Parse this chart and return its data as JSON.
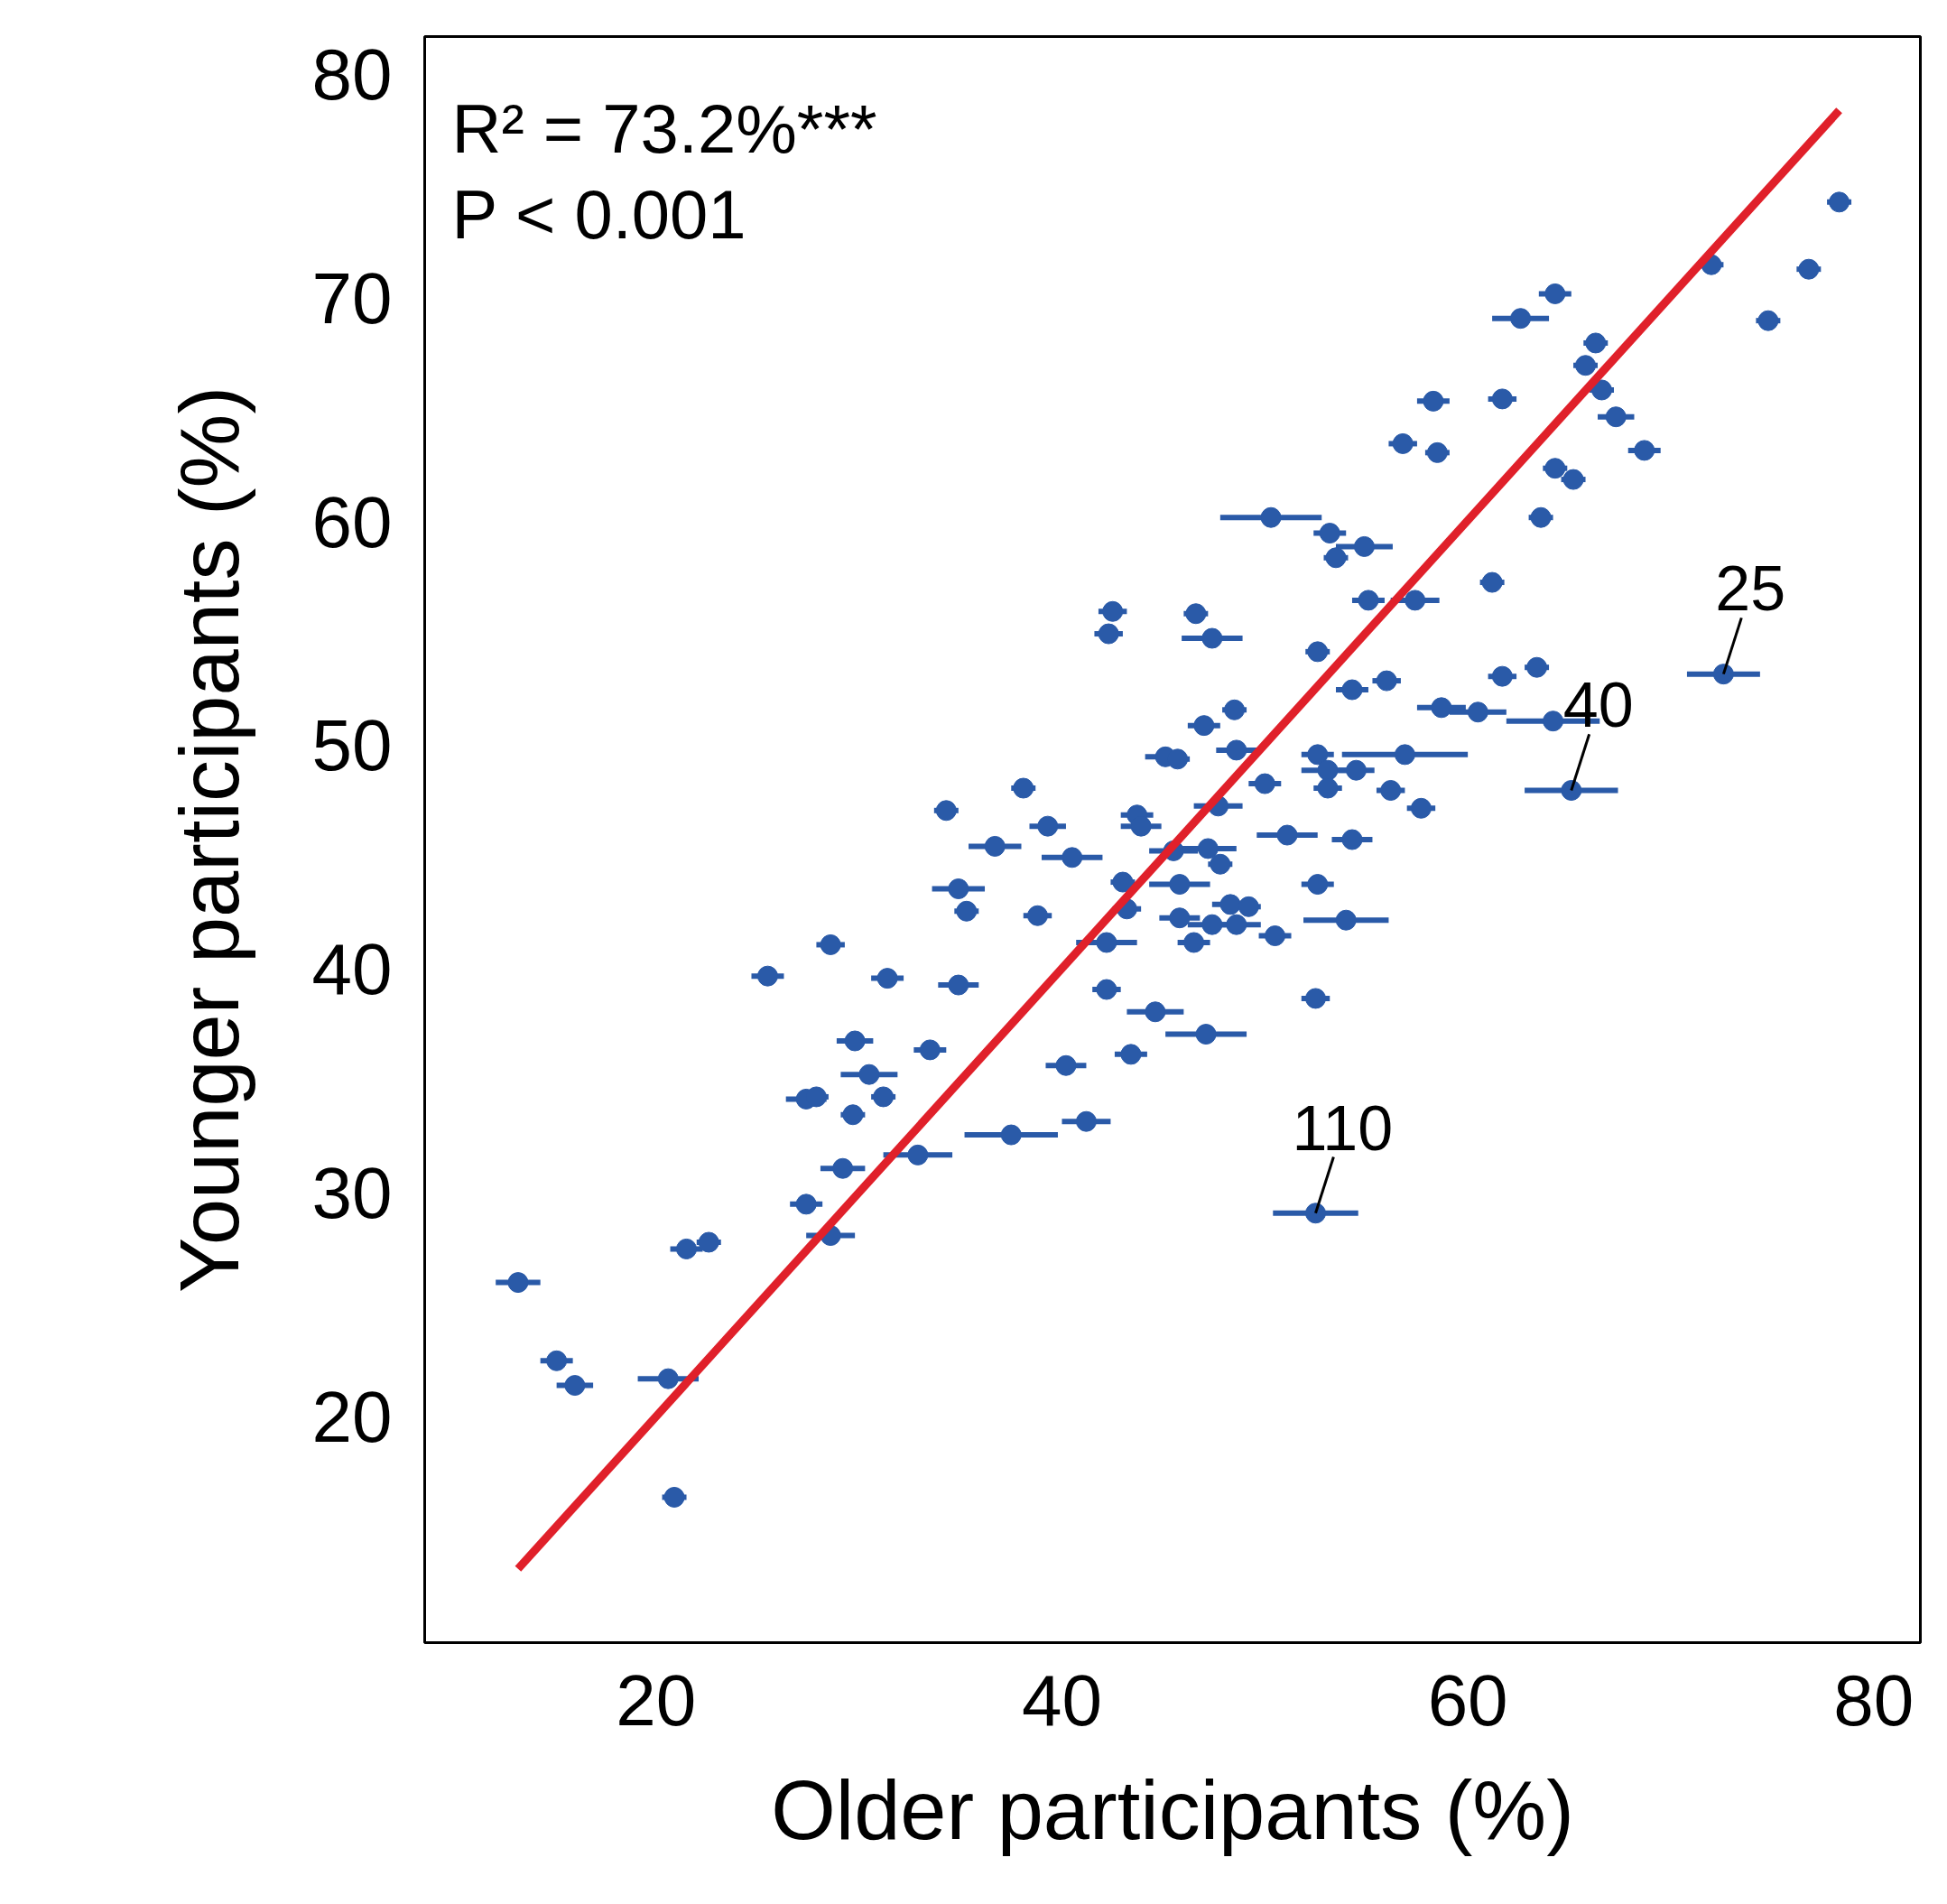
{
  "chart_data": {
    "type": "scatter",
    "xlabel": "Older participants (%)",
    "ylabel": "Younger participants (%)",
    "xlim": [
      8.6,
      82.3
    ],
    "ylim": [
      9.9,
      81.7
    ],
    "xticks": [
      20,
      40,
      60,
      80
    ],
    "yticks": [
      20,
      30,
      40,
      50,
      60,
      70,
      80
    ],
    "grid": false,
    "marker": "circle",
    "annotations": [
      "R² = 73.2%***",
      "P < 0.001",
      {
        "text": "25",
        "x": 72.6,
        "y": 53.2
      },
      {
        "text": "40",
        "x": 65.1,
        "y": 48.0
      },
      {
        "text": "110",
        "x": 52.5,
        "y": 29.1
      }
    ],
    "series": [
      {
        "color": "#2a5aa8",
        "x": [
          13.2,
          15.1,
          16.0,
          20.6,
          20.9,
          21.5,
          22.6,
          25.5,
          27.4,
          27.9,
          27.4,
          28.6,
          28.6,
          29.7,
          29.8,
          30.5,
          29.2,
          31.2,
          31.4,
          32.9,
          33.5,
          34.9,
          34.3,
          35.3,
          34.9,
          36.7,
          37.5,
          38.1,
          38.8,
          39.3,
          40.2,
          40.5,
          41.2,
          42.2,
          42.2,
          42.3,
          42.5,
          43.0,
          43.2,
          43.4,
          43.7,
          43.9,
          44.6,
          45.1,
          45.5,
          45.8,
          45.8,
          45.7,
          46.6,
          47.4,
          47.0,
          46.5,
          47.1,
          47.4,
          47.7,
          47.2,
          47.8,
          48.5,
          48.6,
          48.3,
          48.6,
          49.2,
          50.3,
          50.0,
          50.5,
          51.1,
          52.5,
          52.6,
          52.6,
          52.6,
          52.5,
          53.1,
          53.2,
          53.5,
          53.1,
          54.0,
          54.3,
          54.3,
          54.9,
          54.5,
          55.1,
          56.0,
          56.2,
          56.9,
          57.4,
          56.8,
          57.7,
          58.5,
          58.3,
          58.7,
          60.5,
          61.2,
          61.7,
          61.7,
          62.6,
          63.4,
          63.6,
          64.2,
          64.3,
          64.3,
          65.2,
          65.1,
          65.8,
          66.3,
          66.6,
          67.3,
          68.7,
          72.0,
          72.6,
          74.8,
          76.8,
          78.3
        ],
        "values": [
          26.0,
          22.5,
          21.4,
          21.7,
          16.4,
          27.5,
          27.8,
          39.7,
          34.2,
          34.3,
          29.5,
          41.1,
          28.1,
          33.5,
          36.8,
          35.3,
          31.1,
          34.3,
          39.6,
          31.7,
          36.4,
          43.6,
          47.1,
          42.6,
          39.3,
          45.5,
          32.6,
          48.1,
          42.4,
          46.4,
          35.7,
          45.0,
          33.2,
          41.2,
          39.1,
          55.0,
          56.0,
          43.9,
          42.7,
          36.2,
          46.9,
          46.4,
          38.1,
          49.5,
          45.3,
          43.8,
          42.3,
          49.4,
          55.9,
          54.8,
          50.9,
          41.2,
          37.1,
          42.0,
          47.3,
          45.4,
          44.7,
          51.6,
          49.8,
          42.9,
          42.0,
          42.8,
          60.2,
          48.3,
          41.5,
          46.0,
          38.7,
          54.2,
          49.6,
          43.8,
          29.1,
          48.9,
          59.5,
          58.4,
          48.1,
          42.2,
          52.5,
          45.8,
          58.9,
          48.9,
          56.5,
          52.9,
          48.0,
          49.6,
          56.5,
          63.5,
          47.2,
          63.1,
          65.4,
          51.7,
          51.5,
          57.3,
          65.5,
          53.1,
          69.1,
          53.5,
          60.2,
          51.1,
          70.2,
          62.4,
          61.9,
          48.0,
          67.0,
          68.0,
          65.9,
          64.7,
          63.2,
          71.5,
          53.2,
          69.0,
          71.3,
          74.3
        ],
        "xerrors": [
          1.1,
          0.8,
          0.9,
          1.5,
          0.6,
          0.8,
          0.6,
          0.8,
          1.0,
          0.6,
          0.8,
          0.7,
          1.2,
          0.6,
          0.9,
          1.4,
          1.1,
          0.6,
          0.8,
          1.7,
          0.8,
          1.3,
          0.6,
          0.6,
          1.0,
          1.3,
          2.3,
          0.6,
          0.7,
          0.9,
          1.0,
          1.5,
          1.2,
          1.5,
          0.7,
          0.7,
          0.7,
          0.6,
          0.7,
          0.8,
          0.8,
          1.0,
          1.4,
          1.0,
          1.2,
          1.5,
          1.0,
          0.6,
          0.6,
          1.5,
          0.8,
          0.8,
          2.0,
          1.2,
          1.2,
          1.4,
          0.6,
          0.6,
          1.0,
          0.9,
          1.2,
          0.6,
          2.5,
          0.8,
          0.8,
          1.5,
          0.7,
          0.6,
          0.8,
          0.8,
          2.1,
          1.3,
          0.8,
          0.6,
          0.7,
          2.1,
          0.8,
          1.0,
          1.4,
          0.9,
          0.8,
          0.7,
          0.7,
          3.1,
          1.2,
          0.7,
          0.7,
          0.6,
          0.8,
          1.2,
          1.4,
          0.6,
          0.7,
          0.7,
          1.4,
          0.6,
          0.6,
          2.3,
          0.8,
          0.6,
          0.6,
          2.3,
          0.6,
          0.6,
          0.6,
          0.9,
          0.8,
          0.6,
          1.8,
          0.6,
          0.6,
          0.6
        ]
      },
      {
        "type": "line",
        "marker": "none",
        "color": "#e0202a",
        "x": [
          13.2,
          78.3
        ],
        "values": [
          13.2,
          78.4
        ]
      }
    ]
  }
}
